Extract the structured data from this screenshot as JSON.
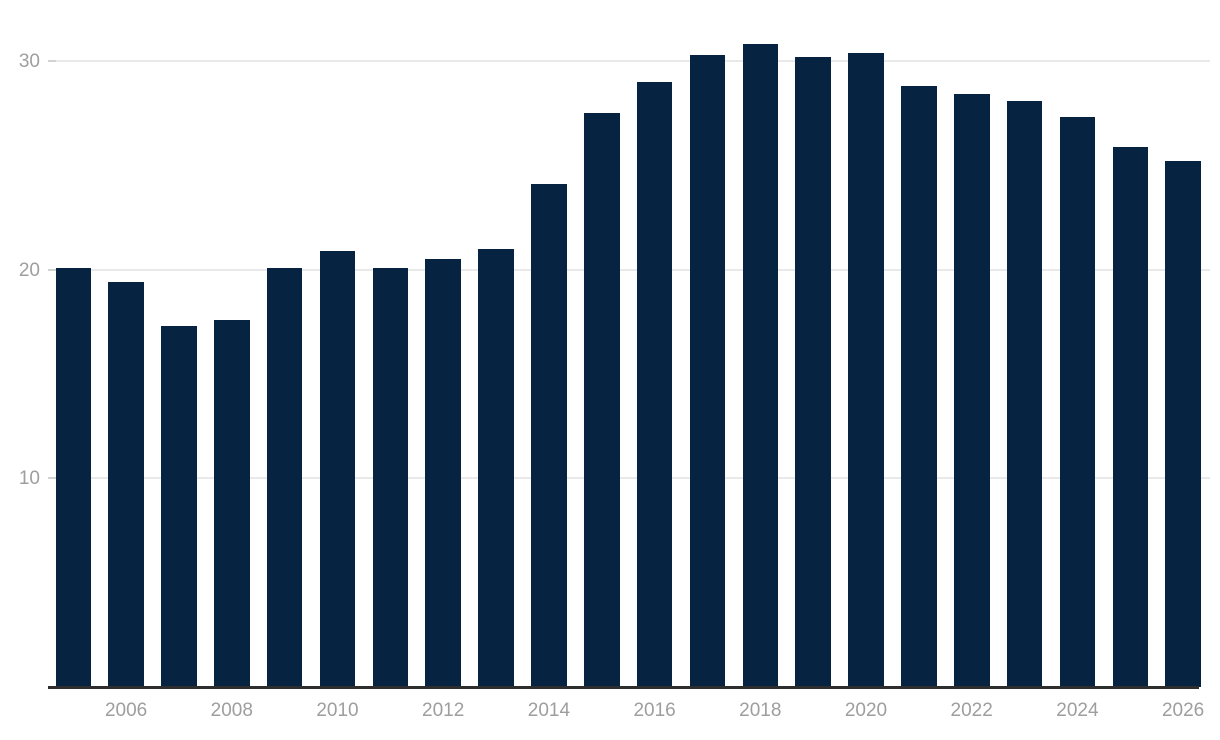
{
  "chart_data": {
    "type": "bar",
    "title": "",
    "xlabel": "",
    "ylabel": "",
    "categories": [
      2005,
      2006,
      2007,
      2008,
      2009,
      2010,
      2011,
      2012,
      2013,
      2014,
      2015,
      2016,
      2017,
      2018,
      2019,
      2020,
      2021,
      2022,
      2023,
      2024,
      2025,
      2026
    ],
    "values": [
      20.1,
      19.4,
      17.3,
      17.6,
      20.1,
      20.9,
      20.1,
      20.5,
      21.0,
      24.1,
      27.5,
      29.0,
      30.3,
      30.8,
      30.2,
      30.4,
      28.8,
      28.4,
      28.1,
      27.3,
      25.9,
      25.2
    ],
    "ylim": [
      0,
      31.5
    ],
    "yticks": [
      10,
      20,
      30
    ],
    "ytick_labels": [
      "10",
      "20",
      "30"
    ],
    "xtick_years": [
      2006,
      2008,
      2010,
      2012,
      2014,
      2016,
      2018,
      2020,
      2022,
      2024,
      2026
    ],
    "xtick_labels": [
      "2006",
      "2008",
      "2010",
      "2012",
      "2014",
      "2016",
      "2018",
      "2020",
      "2022",
      "2024",
      "2026"
    ],
    "grid": "horizontal",
    "legend": "none",
    "colors": {
      "bar": "#062442",
      "gridline": "#e9e9e9",
      "tick_dash": "#d2d2d2",
      "axis_line": "#2e2e2e",
      "tick_label": "#9e9e9e",
      "background": "#ffffff"
    }
  }
}
